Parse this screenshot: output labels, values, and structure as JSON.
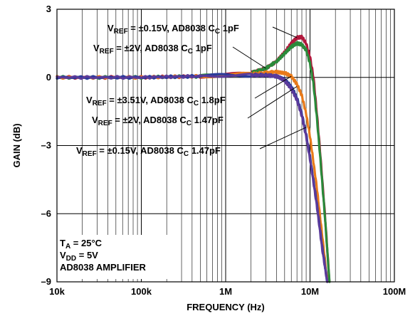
{
  "chart_data": {
    "type": "line",
    "xlabel": "FREQUENCY (Hz)",
    "ylabel": "GAIN (dB)",
    "x_scale": "log",
    "xlim": [
      10000,
      100000000
    ],
    "ylim": [
      -9,
      3
    ],
    "x_ticks": [
      {
        "value": 10000,
        "label": "10k"
      },
      {
        "value": 100000,
        "label": "100k"
      },
      {
        "value": 1000000,
        "label": "1M"
      },
      {
        "value": 10000000,
        "label": "10M"
      },
      {
        "value": 100000000,
        "label": "100M"
      }
    ],
    "y_ticks": [
      {
        "value": 3,
        "label": "3"
      },
      {
        "value": 0,
        "label": "0"
      },
      {
        "value": -3,
        "label": "–3"
      },
      {
        "value": -6,
        "label": "–6"
      },
      {
        "value": -9,
        "label": "–9"
      }
    ],
    "grid": true,
    "series": [
      {
        "color": "#b0183c",
        "x": [
          10000,
          100000,
          500000,
          1000000,
          2000000,
          3000000,
          4000000,
          5000000,
          6000000,
          7000000,
          8000000,
          9000000,
          10000000,
          11000000,
          12000000,
          13000000,
          15000000,
          17000000
        ],
        "y": [
          0,
          0,
          0.05,
          0.1,
          0.2,
          0.4,
          0.7,
          1.1,
          1.5,
          1.75,
          1.78,
          1.5,
          0.9,
          0,
          -1.5,
          -3,
          -6,
          -9
        ]
      },
      {
        "color": "#2a8a3a",
        "x": [
          10000,
          100000,
          500000,
          1000000,
          2000000,
          3000000,
          4000000,
          5000000,
          6000000,
          7000000,
          8000000,
          9000000,
          10000000,
          11000000,
          12000000,
          13000000,
          15000000,
          17000000
        ],
        "y": [
          0,
          0,
          0.05,
          0.1,
          0.2,
          0.4,
          0.7,
          1.05,
          1.35,
          1.5,
          1.45,
          1.2,
          0.6,
          -0.3,
          -1.7,
          -3.2,
          -6.1,
          -9
        ]
      },
      {
        "color": "#e87a1a",
        "x": [
          10000,
          100000,
          500000,
          1000000,
          2000000,
          3000000,
          4000000,
          5000000,
          6000000,
          7000000,
          8000000,
          9000000,
          10000000,
          12000000,
          14000000,
          16000000
        ],
        "y": [
          0,
          0,
          0.05,
          0.1,
          0.15,
          0.2,
          0.25,
          0.2,
          0.05,
          -0.3,
          -0.8,
          -1.6,
          -2.6,
          -4.8,
          -7,
          -9
        ]
      },
      {
        "color": "#2a3a9a",
        "x": [
          10000,
          100000,
          500000,
          1000000,
          2000000,
          3000000,
          4000000,
          5000000,
          6000000,
          7000000,
          8000000,
          9000000,
          10000000,
          12000000,
          14000000,
          16000000
        ],
        "y": [
          0,
          0,
          0.05,
          0.1,
          0.1,
          0.1,
          0.05,
          -0.1,
          -0.4,
          -0.9,
          -1.6,
          -2.5,
          -3.5,
          -5.5,
          -7.5,
          -9
        ]
      },
      {
        "color": "#5a3a9a",
        "x": [
          10000,
          100000,
          500000,
          1000000,
          2000000,
          3000000,
          4000000,
          5000000,
          6000000,
          7000000,
          8000000,
          9000000,
          10000000,
          12000000,
          14000000,
          16000000
        ],
        "y": [
          0,
          0,
          0.05,
          0.1,
          0.1,
          0.1,
          0.05,
          -0.15,
          -0.5,
          -1.0,
          -1.7,
          -2.6,
          -3.6,
          -5.6,
          -7.6,
          -9
        ]
      }
    ],
    "annotations": [
      {
        "main": "V",
        "sub": "REF",
        "mid": " = ±0.15V, AD8038 C",
        "sub2": "C",
        "tail": " 1pF",
        "x": 7000000,
        "y": 1.75
      },
      {
        "main": "V",
        "sub": "REF",
        "mid": " = ±2V, AD8038 C",
        "sub2": "C",
        "tail": " 1pF",
        "x": 3000000,
        "y": 0.4
      },
      {
        "main": "V",
        "sub": "REF",
        "mid": " = ±3.51V, AD8038 C",
        "sub2": "C",
        "tail": " 1.8pF",
        "x": 6000000,
        "y": 0.05
      },
      {
        "main": "V",
        "sub": "REF",
        "mid": " = ±2V, AD8038 C",
        "sub2": "C",
        "tail": " 1.47pF",
        "x": 7000000,
        "y": -0.4
      },
      {
        "main": "V",
        "sub": "REF",
        "mid": " = ±0.15V, AD8038 C",
        "sub2": "C",
        "tail": " 1.47pF",
        "x": 9000000,
        "y": -2.2
      }
    ],
    "conditions": [
      {
        "main": "T",
        "sub": "A",
        "tail": " = 25°C"
      },
      {
        "main": "V",
        "sub": "DD",
        "tail": " = 5V"
      },
      {
        "main": "AD8038 AMPLIFIER",
        "sub": "",
        "tail": ""
      }
    ]
  }
}
